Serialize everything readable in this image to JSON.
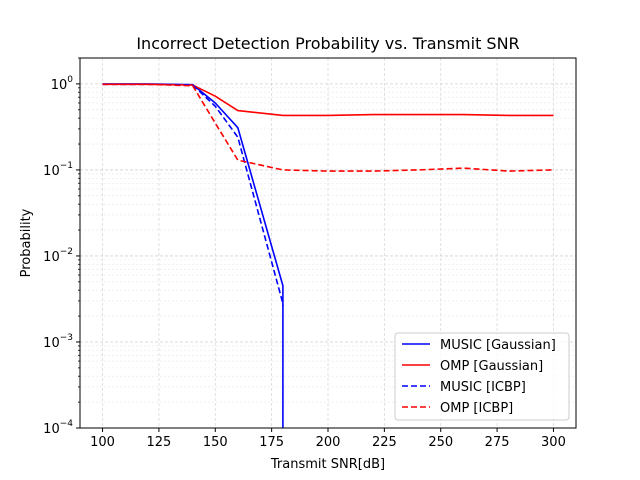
{
  "chart_data": {
    "type": "line",
    "title": "Incorrect Detection Probability vs. Transmit SNR",
    "xlabel": "Transmit SNR[dB]",
    "ylabel": "Probability",
    "xlim": [
      90,
      310
    ],
    "ylim": [
      0.0001,
      2
    ],
    "yscale": "log",
    "grid": true,
    "legend_position": "lower-right",
    "x_ticks": [
      100,
      125,
      150,
      175,
      200,
      225,
      250,
      275,
      300
    ],
    "y_ticks": [
      {
        "value": 0.0001,
        "base": "10",
        "exp": "−4"
      },
      {
        "value": 0.001,
        "base": "10",
        "exp": "−3"
      },
      {
        "value": 0.01,
        "base": "10",
        "exp": "−2"
      },
      {
        "value": 0.1,
        "base": "10",
        "exp": "−1"
      },
      {
        "value": 1,
        "base": "10",
        "exp": "0"
      }
    ],
    "series": [
      {
        "name": "MUSIC [Gaussian]",
        "color": "#0000ff",
        "dash": "solid",
        "points": [
          [
            100,
            1.0
          ],
          [
            120,
            1.0
          ],
          [
            140,
            0.98
          ],
          [
            150,
            0.6
          ],
          [
            160,
            0.31
          ],
          [
            180,
            0.0045
          ],
          [
            180,
            0.0001
          ]
        ]
      },
      {
        "name": "OMP [Gaussian]",
        "color": "#ff0000",
        "dash": "solid",
        "points": [
          [
            100,
            0.99
          ],
          [
            120,
            0.99
          ],
          [
            140,
            0.97
          ],
          [
            150,
            0.72
          ],
          [
            160,
            0.49
          ],
          [
            180,
            0.43
          ],
          [
            200,
            0.43
          ],
          [
            220,
            0.44
          ],
          [
            240,
            0.44
          ],
          [
            260,
            0.44
          ],
          [
            280,
            0.43
          ],
          [
            300,
            0.43
          ]
        ]
      },
      {
        "name": "MUSIC [ICBP]",
        "color": "#0000ff",
        "dash": "dashed",
        "points": [
          [
            100,
            0.99
          ],
          [
            120,
            0.99
          ],
          [
            140,
            0.97
          ],
          [
            150,
            0.55
          ],
          [
            160,
            0.24
          ],
          [
            180,
            0.0028
          ],
          [
            180,
            0.0026
          ]
        ]
      },
      {
        "name": "OMP [ICBP]",
        "color": "#ff0000",
        "dash": "dashed",
        "points": [
          [
            100,
            0.99
          ],
          [
            120,
            0.99
          ],
          [
            140,
            0.95
          ],
          [
            150,
            0.35
          ],
          [
            160,
            0.13
          ],
          [
            180,
            0.1
          ],
          [
            200,
            0.097
          ],
          [
            220,
            0.097
          ],
          [
            240,
            0.1
          ],
          [
            260,
            0.105
          ],
          [
            280,
            0.097
          ],
          [
            300,
            0.1
          ]
        ]
      }
    ]
  }
}
